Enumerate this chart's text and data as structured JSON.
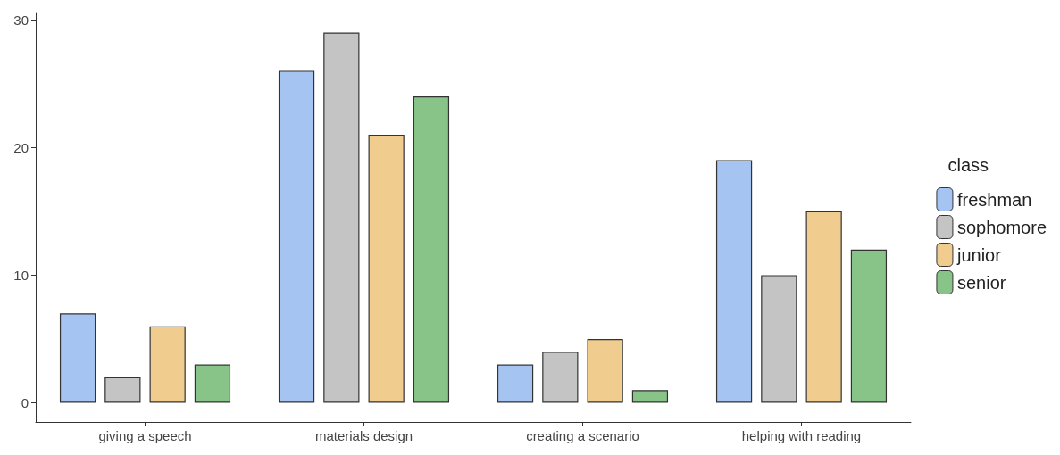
{
  "chart_data": {
    "type": "bar",
    "legend_title": "class",
    "categories": [
      "giving a speech",
      "materials design",
      "creating a scenario",
      "helping with reading"
    ],
    "series": [
      {
        "name": "freshman",
        "color": "#a6c4f2",
        "values": [
          7,
          26,
          3,
          19
        ]
      },
      {
        "name": "sophomore",
        "color": "#c4c4c4",
        "values": [
          2,
          29,
          4,
          10
        ]
      },
      {
        "name": "junior",
        "color": "#f0cd8e",
        "values": [
          6,
          21,
          5,
          15
        ]
      },
      {
        "name": "senior",
        "color": "#88c487",
        "values": [
          3,
          24,
          1,
          12
        ]
      }
    ],
    "ylim": [
      -1.5,
      30.5
    ],
    "yticks": [
      0,
      10,
      20,
      30
    ],
    "grid": false,
    "legend": "right"
  }
}
